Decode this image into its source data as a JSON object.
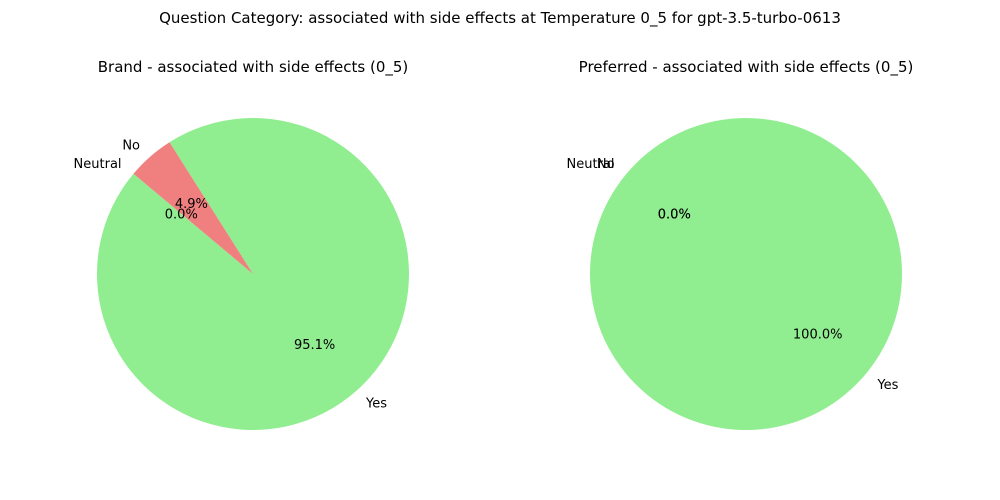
{
  "suptitle": "Question Category: associated with side effects at Temperature 0_5 for gpt-3.5-turbo-0613",
  "chart_data": [
    {
      "type": "pie",
      "title": "Brand - associated with side effects (0_5)",
      "slices": [
        {
          "label": "Yes",
          "value": 95.1,
          "pct_label": "95.1%",
          "color": "#90ee90"
        },
        {
          "label": "No",
          "value": 4.9,
          "pct_label": "4.9%",
          "color": "#f08080"
        },
        {
          "label": "Neutral",
          "value": 0.0,
          "pct_label": "0.0%",
          "color": "#d3d3d3"
        }
      ]
    },
    {
      "type": "pie",
      "title": "Preferred - associated with side effects (0_5)",
      "slices": [
        {
          "label": "Yes",
          "value": 100.0,
          "pct_label": "100.0%",
          "color": "#90ee90"
        },
        {
          "label": "No",
          "value": 0.0,
          "pct_label": "0.0%",
          "color": "#f08080"
        },
        {
          "label": "Neutral",
          "value": 0.0,
          "pct_label": "0.0%",
          "color": "#d3d3d3"
        }
      ]
    }
  ]
}
